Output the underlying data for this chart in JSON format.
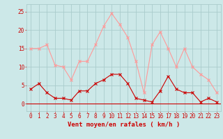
{
  "x": [
    0,
    1,
    2,
    3,
    4,
    5,
    6,
    7,
    8,
    9,
    10,
    11,
    12,
    13,
    14,
    15,
    16,
    17,
    18,
    19,
    20,
    21,
    22,
    23
  ],
  "vent_moyen": [
    4,
    5.5,
    3,
    1.5,
    1.5,
    1,
    3.5,
    3.5,
    5.5,
    6.5,
    8,
    8,
    5.5,
    1.5,
    1,
    0.5,
    3.5,
    7.5,
    4,
    3,
    3,
    0.5,
    1.5,
    0.5
  ],
  "rafales": [
    15,
    15,
    16,
    10.5,
    10,
    6.5,
    11.5,
    11.5,
    16,
    21,
    24.5,
    21.5,
    18,
    11.5,
    3,
    16,
    19.5,
    15,
    10,
    15,
    10,
    8,
    6.5,
    3
  ],
  "bg_color": "#cce8e8",
  "grid_color": "#aacccc",
  "line_moyen_color": "#cc0000",
  "line_rafales_color": "#ff9999",
  "xlabel": "Vent moyen/en rafales ( km/h )",
  "xlabel_color": "#cc0000",
  "xlabel_fontsize": 6.5,
  "tick_color": "#cc0000",
  "tick_fontsize": 5.5,
  "yticks": [
    0,
    5,
    10,
    15,
    20,
    25
  ],
  "ylim": [
    -2,
    27
  ],
  "xlim": [
    -0.5,
    23.5
  ]
}
